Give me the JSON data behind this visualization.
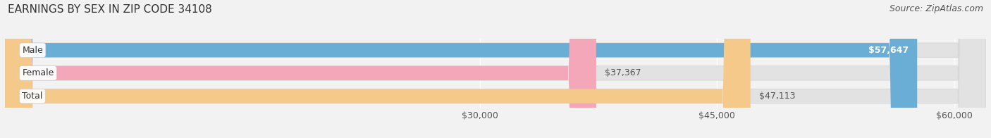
{
  "title": "EARNINGS BY SEX IN ZIP CODE 34108",
  "source": "Source: ZipAtlas.com",
  "categories": [
    "Male",
    "Female",
    "Total"
  ],
  "values": [
    57647,
    37367,
    47113
  ],
  "bar_colors": [
    "#6aaed6",
    "#f4a7b9",
    "#f5c98a"
  ],
  "value_labels": [
    "$57,647",
    "$37,367",
    "$47,113"
  ],
  "value_label_inside": [
    true,
    false,
    false
  ],
  "value_label_color_inside": "white",
  "value_label_color_outside": "#555555",
  "xlim_min": 0,
  "xlim_max": 62000,
  "xaxis_min": 30000,
  "xaxis_max": 60000,
  "xticks": [
    30000,
    45000,
    60000
  ],
  "xtick_labels": [
    "$30,000",
    "$45,000",
    "$60,000"
  ],
  "bg_color": "#f2f2f2",
  "bar_bg_color": "#e2e2e2",
  "bar_bg_outer": "#ebebeb",
  "title_fontsize": 11,
  "source_fontsize": 9,
  "tick_fontsize": 9,
  "label_fontsize": 9,
  "category_fontsize": 9,
  "bar_height": 0.62,
  "bar_gap": 0.18
}
